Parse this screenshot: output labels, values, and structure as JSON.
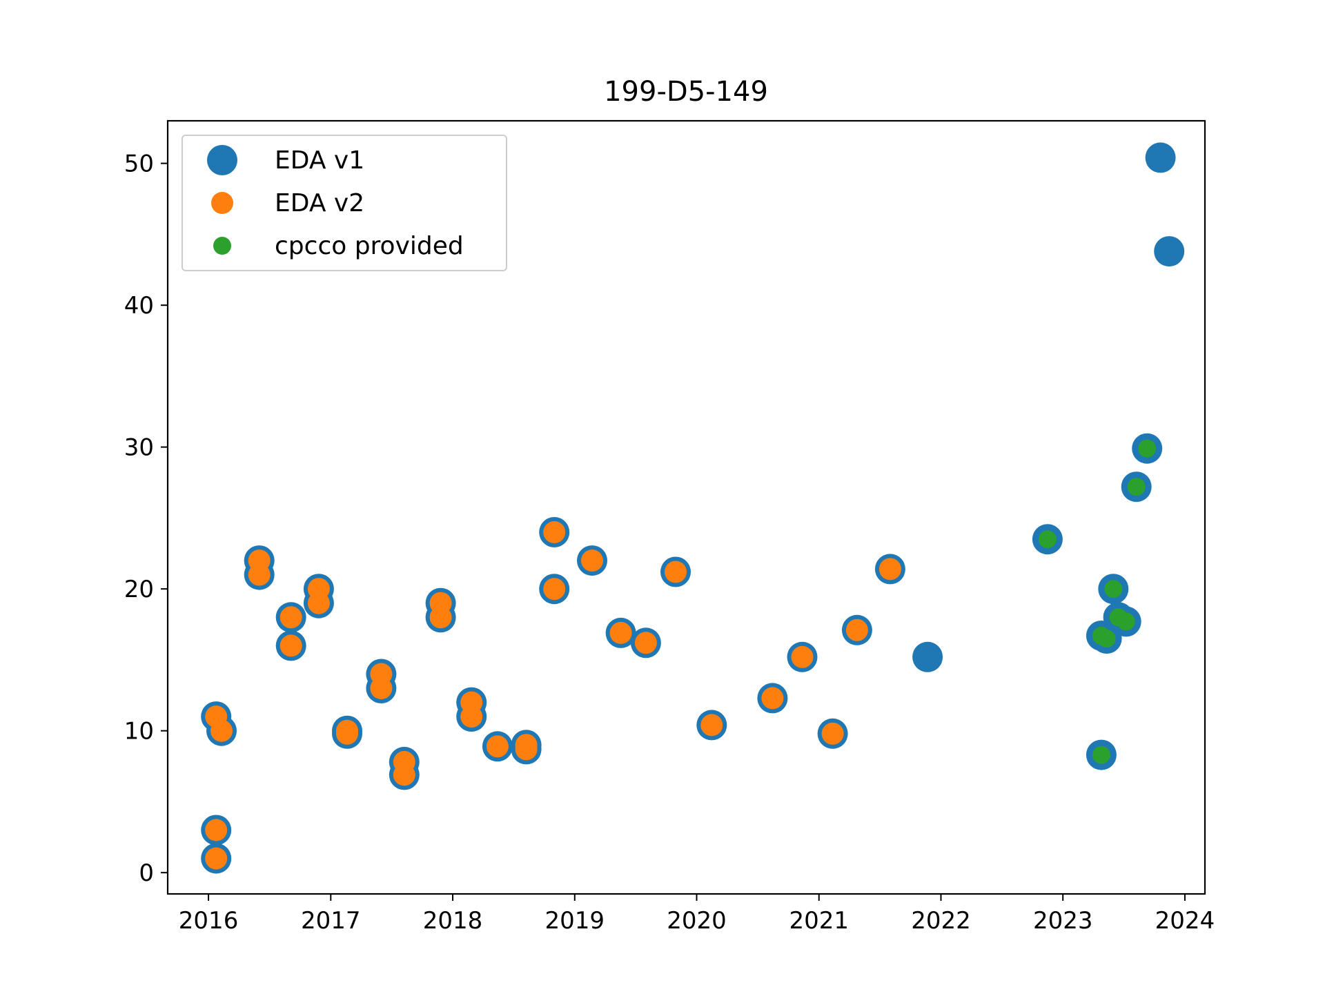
{
  "chart_data": {
    "type": "scatter",
    "title": "199-D5-149",
    "xlabel": "",
    "ylabel": "",
    "x_ticks": [
      "2016",
      "2017",
      "2018",
      "2019",
      "2020",
      "2021",
      "2022",
      "2023",
      "2024"
    ],
    "y_ticks": [
      "0",
      "10",
      "20",
      "30",
      "40",
      "50"
    ],
    "xlim": [
      "2015-09-01",
      "2024-03-01"
    ],
    "ylim": [
      -1.5,
      53
    ],
    "grid": false,
    "legend_position": "upper left",
    "series": [
      {
        "name": "EDA v1",
        "color": "#1f77b4",
        "marker_size": "large",
        "points": [
          {
            "x": "2016-01-24",
            "y": 11
          },
          {
            "x": "2016-02-09",
            "y": 10
          },
          {
            "x": "2016-01-24",
            "y": 3
          },
          {
            "x": "2016-01-24",
            "y": 1
          },
          {
            "x": "2016-06-01",
            "y": 22
          },
          {
            "x": "2016-06-01",
            "y": 21
          },
          {
            "x": "2016-09-04",
            "y": 18
          },
          {
            "x": "2016-09-04",
            "y": 16
          },
          {
            "x": "2016-11-26",
            "y": 20
          },
          {
            "x": "2016-11-26",
            "y": 19
          },
          {
            "x": "2017-02-19",
            "y": 10
          },
          {
            "x": "2017-02-19",
            "y": 9.8
          },
          {
            "x": "2017-06-01",
            "y": 14
          },
          {
            "x": "2017-06-01",
            "y": 13
          },
          {
            "x": "2017-08-09",
            "y": 7.8
          },
          {
            "x": "2017-08-09",
            "y": 6.9
          },
          {
            "x": "2017-11-26",
            "y": 19
          },
          {
            "x": "2017-11-26",
            "y": 18
          },
          {
            "x": "2018-02-26",
            "y": 12
          },
          {
            "x": "2018-02-26",
            "y": 11
          },
          {
            "x": "2018-05-15",
            "y": 8.9
          },
          {
            "x": "2018-08-09",
            "y": 9
          },
          {
            "x": "2018-08-09",
            "y": 8.7
          },
          {
            "x": "2018-11-01",
            "y": 24
          },
          {
            "x": "2018-11-01",
            "y": 20
          },
          {
            "x": "2019-02-22",
            "y": 22
          },
          {
            "x": "2019-05-19",
            "y": 16.9
          },
          {
            "x": "2019-08-02",
            "y": 16.2
          },
          {
            "x": "2019-10-30",
            "y": 21.2
          },
          {
            "x": "2020-02-15",
            "y": 10.4
          },
          {
            "x": "2020-08-15",
            "y": 12.3
          },
          {
            "x": "2020-11-12",
            "y": 15.2
          },
          {
            "x": "2021-02-11",
            "y": 9.8
          },
          {
            "x": "2021-04-25",
            "y": 17.1
          },
          {
            "x": "2021-08-02",
            "y": 21.4
          },
          {
            "x": "2021-11-22",
            "y": 15.2
          },
          {
            "x": "2022-11-16",
            "y": 23.5
          },
          {
            "x": "2023-04-26",
            "y": 16.7
          },
          {
            "x": "2023-05-12",
            "y": 16.5
          },
          {
            "x": "2023-04-26",
            "y": 8.3
          },
          {
            "x": "2023-06-01",
            "y": 20
          },
          {
            "x": "2023-06-16",
            "y": 18
          },
          {
            "x": "2023-07-09",
            "y": 17.7
          },
          {
            "x": "2023-08-09",
            "y": 27.2
          },
          {
            "x": "2023-09-10",
            "y": 29.9
          },
          {
            "x": "2023-10-20",
            "y": 50.4
          },
          {
            "x": "2023-11-15",
            "y": 43.8
          }
        ]
      },
      {
        "name": "EDA v2",
        "color": "#ff7f0e",
        "marker_size": "medium",
        "points": [
          {
            "x": "2016-01-24",
            "y": 11
          },
          {
            "x": "2016-02-09",
            "y": 10
          },
          {
            "x": "2016-01-24",
            "y": 3
          },
          {
            "x": "2016-01-24",
            "y": 1
          },
          {
            "x": "2016-06-01",
            "y": 22
          },
          {
            "x": "2016-06-01",
            "y": 21
          },
          {
            "x": "2016-09-04",
            "y": 18
          },
          {
            "x": "2016-09-04",
            "y": 16
          },
          {
            "x": "2016-11-26",
            "y": 20
          },
          {
            "x": "2016-11-26",
            "y": 19
          },
          {
            "x": "2017-02-19",
            "y": 10
          },
          {
            "x": "2017-02-19",
            "y": 9.8
          },
          {
            "x": "2017-06-01",
            "y": 14
          },
          {
            "x": "2017-06-01",
            "y": 13
          },
          {
            "x": "2017-08-09",
            "y": 7.8
          },
          {
            "x": "2017-08-09",
            "y": 6.9
          },
          {
            "x": "2017-11-26",
            "y": 19
          },
          {
            "x": "2017-11-26",
            "y": 18
          },
          {
            "x": "2018-02-26",
            "y": 12
          },
          {
            "x": "2018-02-26",
            "y": 11
          },
          {
            "x": "2018-05-15",
            "y": 8.9
          },
          {
            "x": "2018-08-09",
            "y": 9
          },
          {
            "x": "2018-08-09",
            "y": 8.7
          },
          {
            "x": "2018-11-01",
            "y": 24
          },
          {
            "x": "2018-11-01",
            "y": 20
          },
          {
            "x": "2019-02-22",
            "y": 22
          },
          {
            "x": "2019-05-19",
            "y": 16.9
          },
          {
            "x": "2019-08-02",
            "y": 16.2
          },
          {
            "x": "2019-10-30",
            "y": 21.2
          },
          {
            "x": "2020-02-15",
            "y": 10.4
          },
          {
            "x": "2020-08-15",
            "y": 12.3
          },
          {
            "x": "2020-11-12",
            "y": 15.2
          },
          {
            "x": "2021-02-11",
            "y": 9.8
          },
          {
            "x": "2021-04-25",
            "y": 17.1
          },
          {
            "x": "2021-08-02",
            "y": 21.4
          }
        ]
      },
      {
        "name": "cpcco provided",
        "color": "#2ca02c",
        "marker_size": "small",
        "points": [
          {
            "x": "2022-11-16",
            "y": 23.5
          },
          {
            "x": "2023-04-26",
            "y": 16.7
          },
          {
            "x": "2023-05-12",
            "y": 16.5
          },
          {
            "x": "2023-04-26",
            "y": 8.3
          },
          {
            "x": "2023-06-01",
            "y": 20
          },
          {
            "x": "2023-06-16",
            "y": 18
          },
          {
            "x": "2023-07-09",
            "y": 17.7
          },
          {
            "x": "2023-08-09",
            "y": 27.2
          },
          {
            "x": "2023-09-10",
            "y": 29.9
          }
        ]
      }
    ]
  }
}
